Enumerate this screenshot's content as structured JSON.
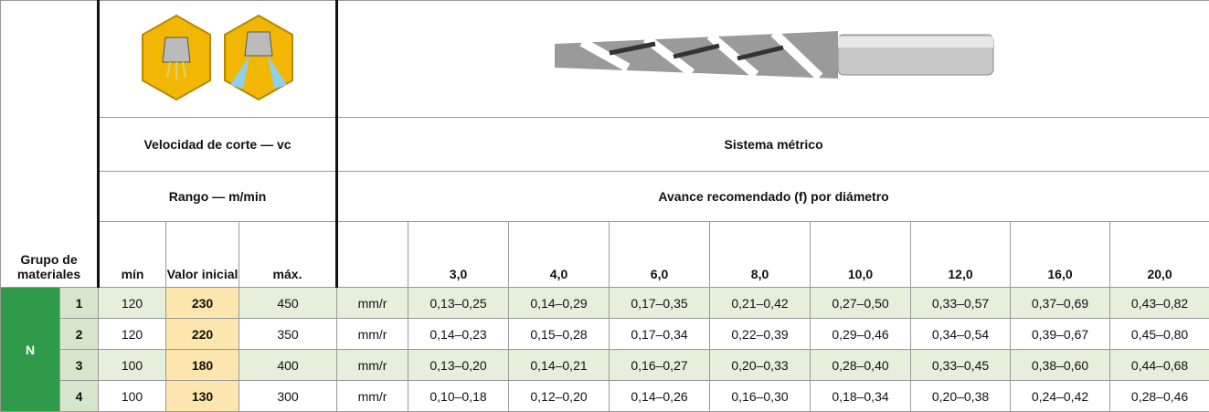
{
  "header": {
    "group": "Grupo de materiales",
    "velocity": "Velocidad de corte — vc",
    "system": "Sistema métrico",
    "range": "Rango — m/min",
    "feed": "Avance recomendado (f) por diámetro",
    "columns": [
      "mín",
      "Valor inicial",
      "máx."
    ],
    "diameters": [
      "3,0",
      "4,0",
      "6,0",
      "8,0",
      "10,0",
      "12,0",
      "16,0",
      "20,0"
    ]
  },
  "group": "N",
  "rows": [
    {
      "num": 1,
      "min": 120,
      "init": 230,
      "max": 450,
      "unit": "mm/r",
      "feeds": [
        "0,13–0,25",
        "0,14–0,29",
        "0,17–0,35",
        "0,21–0,42",
        "0,27–0,50",
        "0,33–0,57",
        "0,37–0,69",
        "0,43–0,82"
      ]
    },
    {
      "num": 2,
      "min": 120,
      "init": 220,
      "max": 350,
      "unit": "mm/r",
      "feeds": [
        "0,14–0,23",
        "0,15–0,28",
        "0,17–0,34",
        "0,22–0,39",
        "0,29–0,46",
        "0,34–0,54",
        "0,39–0,67",
        "0,45–0,80"
      ]
    },
    {
      "num": 3,
      "min": 100,
      "init": 180,
      "max": 400,
      "unit": "mm/r",
      "feeds": [
        "0,13–0,20",
        "0,14–0,21",
        "0,16–0,27",
        "0,20–0,33",
        "0,28–0,40",
        "0,33–0,45",
        "0,38–0,60",
        "0,44–0,68"
      ]
    },
    {
      "num": 4,
      "min": 100,
      "init": 130,
      "max": 300,
      "unit": "mm/r",
      "feeds": [
        "0,10–0,18",
        "0,12–0,20",
        "0,14–0,26",
        "0,16–0,30",
        "0,18–0,34",
        "0,20–0,38",
        "0,24–0,42",
        "0,28–0,46"
      ]
    }
  ]
}
